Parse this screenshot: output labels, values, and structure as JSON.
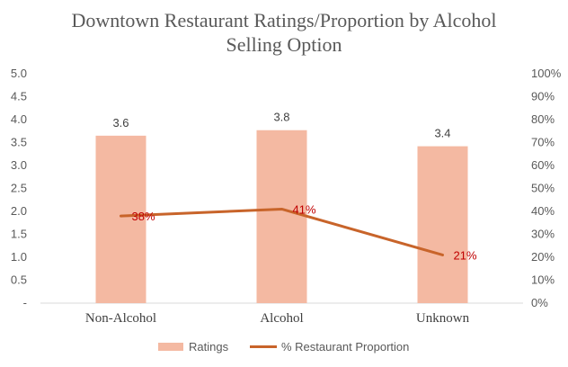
{
  "chart_data": {
    "type": "bar+line",
    "title_lines": [
      "Downtown Restaurant Ratings/Proportion by Alcohol",
      "Selling Option"
    ],
    "categories": [
      "Non-Alcohol",
      "Alcohol",
      "Unknown"
    ],
    "y_left": {
      "min": 0,
      "max": 5,
      "step": 0.5,
      "tick_labels": [
        "-",
        "0.5",
        "1.0",
        "1.5",
        "2.0",
        "2.5",
        "3.0",
        "3.5",
        "4.0",
        "4.5",
        "5.0"
      ]
    },
    "y_right": {
      "min": 0,
      "max": 100,
      "step": 10,
      "tick_labels": [
        "0%",
        "10%",
        "20%",
        "30%",
        "40%",
        "50%",
        "60%",
        "70%",
        "80%",
        "90%",
        "100%"
      ]
    },
    "series": [
      {
        "name": "Ratings",
        "type": "bar",
        "axis": "left",
        "values": [
          3.65,
          3.77,
          3.42
        ],
        "labels": [
          "3.6",
          "3.8",
          "3.4"
        ],
        "color": "#f4b9a2"
      },
      {
        "name": "% Restaurant Proportion",
        "type": "line",
        "axis": "right",
        "values": [
          38,
          41,
          21
        ],
        "labels": [
          "38%",
          "41%",
          "21%"
        ],
        "color": "#c8642a",
        "label_color": "#c00000"
      }
    ],
    "legend_position": "bottom",
    "grid": false
  }
}
